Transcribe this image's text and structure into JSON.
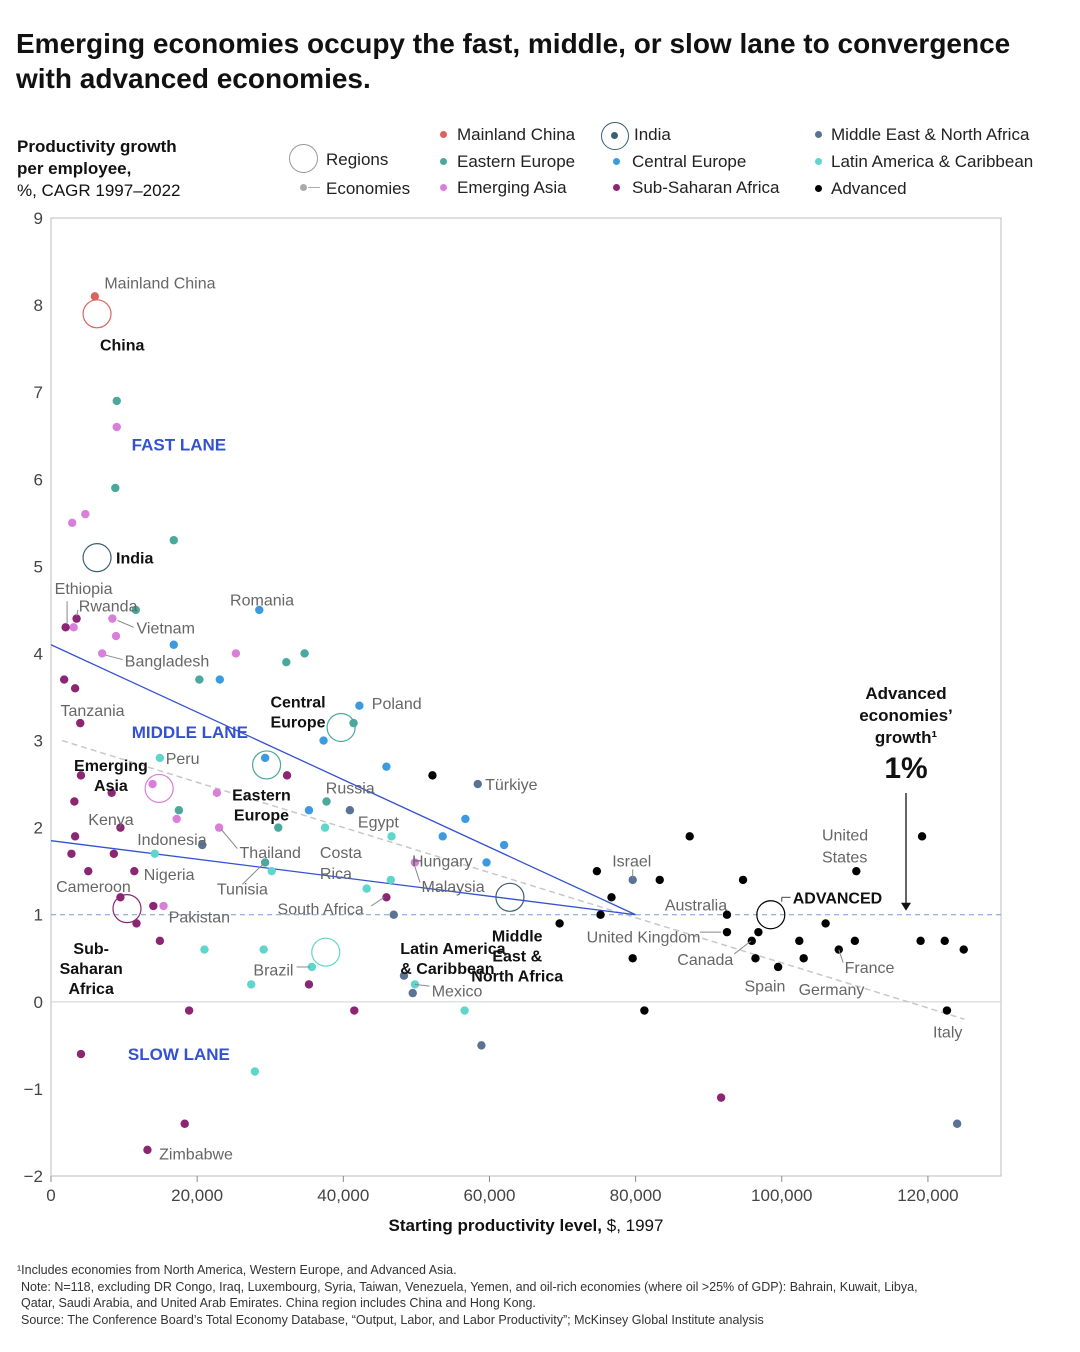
{
  "title": "Emerging economies occupy the fast, middle, or slow lane to convergence with advanced economies.",
  "y_axis_title": {
    "bold": "Productivity growth per employee,",
    "rest": "%, CAGR 1997–2022"
  },
  "legend": {
    "regions_label": "Regions",
    "economies_label": "Economies",
    "items": [
      {
        "name": "Mainland China",
        "color": "#d9645f"
      },
      {
        "name": "Eastern Europe",
        "color": "#4aa89c"
      },
      {
        "name": "Emerging Asia",
        "color": "#d97fd9"
      },
      {
        "name": "India",
        "color": "#3b5f73",
        "ringed": true
      },
      {
        "name": "Central Europe",
        "color": "#3c9be0"
      },
      {
        "name": "Sub-Saharan Africa",
        "color": "#8a2672"
      },
      {
        "name": "Middle East & North Africa",
        "color": "#5a7394"
      },
      {
        "name": "Latin America & Caribbean",
        "color": "#5fd6cc"
      },
      {
        "name": "Advanced",
        "color": "#000000"
      }
    ]
  },
  "notes": [
    "¹Includes economies from North America, Western Europe, and Advanced Asia.",
    "Note: N=118, excluding DR Congo, Iraq, Luxembourg, Syria, Taiwan, Venezuela, Yemen, and oil-rich economies (where oil >25% of GDP): Bahrain, Kuwait, Libya,",
    "Qatar, Saudi Arabia, and United Arab Emirates. China region includes China and Hong Kong.",
    "Source: The Conference Board’s Total Economy Database, “Output, Labor, and Labor Productivity”; McKinsey Global Institute analysis"
  ],
  "chart_data": {
    "type": "scatter",
    "xlabel_bold": "Starting productivity level,",
    "xlabel_rest": "$, 1997",
    "xlim": [
      0,
      130000
    ],
    "ylim": [
      -2,
      9
    ],
    "xticks": [
      {
        "v": 0,
        "l": "0"
      },
      {
        "v": 20000,
        "l": "20,000"
      },
      {
        "v": 40000,
        "l": "40,000"
      },
      {
        "v": 60000,
        "l": "60,000"
      },
      {
        "v": 80000,
        "l": "80,000"
      },
      {
        "v": 100000,
        "l": "100,000"
      },
      {
        "v": 120000,
        "l": "120,000"
      }
    ],
    "yticks": [
      {
        "v": -2,
        "l": "−2"
      },
      {
        "v": -1,
        "l": "−1"
      },
      {
        "v": 0,
        "l": "0"
      },
      {
        "v": 1,
        "l": "1"
      },
      {
        "v": 2,
        "l": "2"
      },
      {
        "v": 3,
        "l": "3"
      },
      {
        "v": 4,
        "l": "4"
      },
      {
        "v": 5,
        "l": "5"
      },
      {
        "v": 6,
        "l": "6"
      },
      {
        "v": 7,
        "l": "7"
      },
      {
        "v": 8,
        "l": "8"
      },
      {
        "v": 9,
        "l": "9"
      }
    ],
    "reference_line_y": 1,
    "lanes": [
      {
        "name": "FAST LANE",
        "x": 17500,
        "y": 6.4
      },
      {
        "name": "MIDDLE LANE",
        "x": 19000,
        "y": 3.1
      },
      {
        "name": "SLOW LANE",
        "x": 17500,
        "y": -0.6
      }
    ],
    "lane_lines": [
      {
        "x": [
          0,
          80000
        ],
        "y": [
          4.1,
          1.0
        ]
      },
      {
        "x": [
          0,
          80000
        ],
        "y": [
          1.85,
          1.0
        ]
      }
    ],
    "trend_line": {
      "x": [
        1500,
        125000
      ],
      "y": [
        3.0,
        -0.2
      ]
    },
    "advanced_annotation": {
      "label": "Advanced economies’ growth¹",
      "value": "1%",
      "x": 117000
    },
    "regions": [
      {
        "name": "China",
        "x": 6300,
        "y": 7.9,
        "color": "#d9645f"
      },
      {
        "name": "India",
        "x": 6300,
        "y": 5.1,
        "color": "#3b5f73"
      },
      {
        "name": "Central Europe",
        "x": 39700,
        "y": 3.15,
        "color": "#4aa89c"
      },
      {
        "name": "Eastern Europe",
        "x": 29500,
        "y": 2.72,
        "color": "#4aa89c"
      },
      {
        "name": "Emerging Asia",
        "x": 14800,
        "y": 2.45,
        "color": "#d97fd9"
      },
      {
        "name": "Middle East & North Africa",
        "x": 62800,
        "y": 1.2,
        "color": "#3b5f73"
      },
      {
        "name": "Latin America & Caribbean",
        "x": 37600,
        "y": 0.57,
        "color": "#5fd6cc"
      },
      {
        "name": "Sub-Saharan Africa",
        "x": 10400,
        "y": 1.07,
        "color": "#8a2672"
      },
      {
        "name": "ADVANCED",
        "x": 98500,
        "y": 1.0,
        "color": "#000000"
      }
    ],
    "region_labels": [
      {
        "text": "China",
        "x": 6700,
        "y": 7.55
      },
      {
        "text": "India",
        "x": 8900,
        "y": 5.1
      },
      {
        "text": "Central Europe",
        "x": 33800,
        "y": 3.45
      },
      {
        "text": "Eastern Europe",
        "x": 28800,
        "y": 2.38
      },
      {
        "text": "Emerging Asia",
        "x": 8200,
        "y": 2.72
      },
      {
        "text": "Middle East & North Africa",
        "x": 63800,
        "y": 0.76
      },
      {
        "text": "Latin America & Caribbean",
        "x": 47800,
        "y": 0.62
      },
      {
        "text": "Sub-Saharan Africa",
        "x": 5500,
        "y": 0.62
      },
      {
        "text": "ADVANCED",
        "x": 101500,
        "y": 1.2
      }
    ],
    "series": [
      {
        "name": "Mainland China",
        "color": "#d9645f",
        "points": [
          [
            6000,
            8.1
          ]
        ]
      },
      {
        "name": "Eastern Europe",
        "color": "#4aa89c",
        "points": [
          [
            9000,
            6.9
          ],
          [
            8800,
            5.9
          ],
          [
            16800,
            5.3
          ],
          [
            11600,
            4.5
          ],
          [
            34700,
            4.0
          ],
          [
            32200,
            3.9
          ],
          [
            20300,
            3.7
          ],
          [
            41400,
            3.2
          ],
          [
            17500,
            2.2
          ],
          [
            37700,
            2.3
          ],
          [
            31100,
            2.0
          ],
          [
            29300,
            1.6
          ]
        ]
      },
      {
        "name": "Emerging Asia",
        "color": "#d97fd9",
        "points": [
          [
            9000,
            6.6
          ],
          [
            4700,
            5.6
          ],
          [
            2900,
            5.5
          ],
          [
            3100,
            4.3
          ],
          [
            8400,
            4.4
          ],
          [
            8900,
            4.2
          ],
          [
            7000,
            4.0
          ],
          [
            25300,
            4.0
          ],
          [
            13900,
            2.5
          ],
          [
            22700,
            2.4
          ],
          [
            17200,
            2.1
          ],
          [
            23000,
            2.0
          ],
          [
            15400,
            1.1
          ],
          [
            49800,
            1.6
          ]
        ]
      },
      {
        "name": "Central Europe",
        "color": "#3c9be0",
        "points": [
          [
            28500,
            4.5
          ],
          [
            16800,
            4.1
          ],
          [
            23100,
            3.7
          ],
          [
            42200,
            3.4
          ],
          [
            29300,
            2.8
          ],
          [
            37300,
            3.0
          ],
          [
            45900,
            2.7
          ],
          [
            35300,
            2.2
          ],
          [
            56700,
            2.1
          ],
          [
            53600,
            1.9
          ],
          [
            62000,
            1.8
          ],
          [
            59600,
            1.6
          ]
        ]
      },
      {
        "name": "Sub-Saharan Africa",
        "color": "#8a2672",
        "points": [
          [
            2000,
            4.3
          ],
          [
            3500,
            4.4
          ],
          [
            1800,
            3.7
          ],
          [
            3300,
            3.6
          ],
          [
            4000,
            3.2
          ],
          [
            4100,
            2.6
          ],
          [
            3200,
            2.3
          ],
          [
            8300,
            2.4
          ],
          [
            32300,
            2.6
          ],
          [
            3300,
            1.9
          ],
          [
            9500,
            2.0
          ],
          [
            2800,
            1.7
          ],
          [
            8600,
            1.7
          ],
          [
            5100,
            1.5
          ],
          [
            11400,
            1.5
          ],
          [
            9500,
            1.2
          ],
          [
            14000,
            1.1
          ],
          [
            11700,
            0.9
          ],
          [
            14900,
            0.7
          ],
          [
            35300,
            0.2
          ],
          [
            18900,
            -0.1
          ],
          [
            41500,
            -0.1
          ],
          [
            4100,
            -0.6
          ],
          [
            91700,
            -1.1
          ],
          [
            18300,
            -1.4
          ],
          [
            13200,
            -1.7
          ],
          [
            45900,
            1.2
          ]
        ]
      },
      {
        "name": "Middle East & North Africa",
        "color": "#5a7394",
        "points": [
          [
            58400,
            2.5
          ],
          [
            40900,
            2.2
          ],
          [
            20700,
            1.8
          ],
          [
            46900,
            1.0
          ],
          [
            48300,
            0.3
          ],
          [
            49500,
            0.1
          ],
          [
            58900,
            -0.5
          ],
          [
            124000,
            -1.4
          ],
          [
            79600,
            1.4
          ]
        ]
      },
      {
        "name": "Latin America & Caribbean",
        "color": "#5fd6cc",
        "points": [
          [
            14900,
            2.8
          ],
          [
            14200,
            1.7
          ],
          [
            30200,
            1.5
          ],
          [
            43200,
            1.3
          ],
          [
            46500,
            1.4
          ],
          [
            46600,
            1.9
          ],
          [
            37500,
            2.0
          ],
          [
            21000,
            0.6
          ],
          [
            29100,
            0.6
          ],
          [
            35700,
            0.4
          ],
          [
            27400,
            0.2
          ],
          [
            49800,
            0.2
          ],
          [
            56600,
            -0.1
          ],
          [
            27900,
            -0.8
          ]
        ]
      },
      {
        "name": "Advanced",
        "color": "#000000",
        "points": [
          [
            52200,
            2.6
          ],
          [
            87400,
            1.9
          ],
          [
            119200,
            1.9
          ],
          [
            74700,
            1.5
          ],
          [
            83300,
            1.4
          ],
          [
            94700,
            1.4
          ],
          [
            110200,
            1.5
          ],
          [
            76700,
            1.2
          ],
          [
            75200,
            1.0
          ],
          [
            92500,
            1.0
          ],
          [
            69600,
            0.9
          ],
          [
            92500,
            0.8
          ],
          [
            96800,
            0.8
          ],
          [
            95900,
            0.7
          ],
          [
            102400,
            0.7
          ],
          [
            106000,
            0.9
          ],
          [
            110000,
            0.7
          ],
          [
            119000,
            0.7
          ],
          [
            122300,
            0.7
          ],
          [
            124900,
            0.6
          ],
          [
            107800,
            0.6
          ],
          [
            79600,
            0.5
          ],
          [
            96400,
            0.5
          ],
          [
            103000,
            0.5
          ],
          [
            99500,
            0.4
          ],
          [
            81200,
            -0.1
          ],
          [
            122600,
            -0.1
          ]
        ]
      }
    ],
    "annotations": [
      {
        "text": "Mainland China",
        "x": 7300,
        "y": 8.26,
        "anchor": "start",
        "lines": []
      },
      {
        "text": "Ethiopia",
        "x": 500,
        "y": 4.75,
        "anchor": "start",
        "lines": [
          [
            2200,
            4.6,
            2200,
            4.35
          ]
        ]
      },
      {
        "text": "Rwanda",
        "x": 3800,
        "y": 4.55,
        "anchor": "start",
        "lines": [
          [
            3700,
            4.5,
            3500,
            4.43
          ]
        ]
      },
      {
        "text": "Vietnam",
        "x": 11700,
        "y": 4.3,
        "anchor": "start",
        "lines": [
          [
            9100,
            4.38,
            11300,
            4.3
          ]
        ]
      },
      {
        "text": "Bangladesh",
        "x": 10100,
        "y": 3.92,
        "anchor": "start",
        "lines": [
          [
            7500,
            3.98,
            9800,
            3.93
          ]
        ]
      },
      {
        "text": "Romania",
        "x": 24500,
        "y": 4.62,
        "anchor": "start",
        "lines": []
      },
      {
        "text": "Poland",
        "x": 43900,
        "y": 3.43,
        "anchor": "start",
        "lines": []
      },
      {
        "text": "Tanzania",
        "x": 1300,
        "y": 3.35,
        "anchor": "start",
        "lines": []
      },
      {
        "text": "Peru",
        "x": 15700,
        "y": 2.8,
        "anchor": "start",
        "lines": []
      },
      {
        "text": "Russia",
        "x": 37600,
        "y": 2.46,
        "anchor": "start",
        "lines": []
      },
      {
        "text": "Türkiye",
        "x": 59400,
        "y": 2.5,
        "anchor": "start",
        "lines": []
      },
      {
        "text": "Kenya",
        "x": 5100,
        "y": 2.1,
        "anchor": "start",
        "lines": []
      },
      {
        "text": "Egypt",
        "x": 42000,
        "y": 2.07,
        "anchor": "start",
        "lines": []
      },
      {
        "text": "Indonesia",
        "x": 11800,
        "y": 1.87,
        "anchor": "start",
        "lines": []
      },
      {
        "text": "Thailand",
        "x": 25800,
        "y": 1.72,
        "anchor": "start",
        "lines": [
          [
            23300,
            1.98,
            25500,
            1.76
          ]
        ]
      },
      {
        "text": "Costa",
        "x": 36800,
        "y": 1.72,
        "anchor": "start",
        "lines": []
      },
      {
        "text": "Rica",
        "x": 36800,
        "y": 1.48,
        "anchor": "start",
        "lines": []
      },
      {
        "text": "Hungary",
        "x": 49400,
        "y": 1.62,
        "anchor": "start",
        "lines": []
      },
      {
        "text": "Malaysia",
        "x": 50700,
        "y": 1.33,
        "anchor": "start",
        "lines": [
          [
            49800,
            1.55,
            50500,
            1.37
          ]
        ]
      },
      {
        "text": "Nigeria",
        "x": 12700,
        "y": 1.47,
        "anchor": "start",
        "lines": []
      },
      {
        "text": "Cameroon",
        "x": 700,
        "y": 1.33,
        "anchor": "start",
        "lines": []
      },
      {
        "text": "Tunisia",
        "x": 22700,
        "y": 1.3,
        "anchor": "start",
        "lines": [
          [
            26200,
            1.35,
            29000,
            1.58
          ]
        ]
      },
      {
        "text": "South Africa",
        "x": 31000,
        "y": 1.07,
        "anchor": "start",
        "lines": [
          [
            43800,
            1.1,
            45600,
            1.2
          ]
        ]
      },
      {
        "text": "Pakistan",
        "x": 16100,
        "y": 0.98,
        "anchor": "start",
        "lines": []
      },
      {
        "text": "Israel",
        "x": 76800,
        "y": 1.62,
        "anchor": "start",
        "lines": [
          [
            79600,
            1.52,
            79600,
            1.42
          ]
        ]
      },
      {
        "text": "Australia",
        "x": 84000,
        "y": 1.12,
        "anchor": "start",
        "lines": []
      },
      {
        "text": "United Kingdom",
        "x": 73300,
        "y": 0.75,
        "anchor": "start",
        "lines": [
          [
            88800,
            0.8,
            91700,
            0.8
          ]
        ]
      },
      {
        "text": "Canada",
        "x": 85700,
        "y": 0.49,
        "anchor": "start",
        "lines": [
          [
            93500,
            0.55,
            95800,
            0.7
          ]
        ]
      },
      {
        "text": "Spain",
        "x": 94900,
        "y": 0.19,
        "anchor": "start",
        "lines": []
      },
      {
        "text": "Germany",
        "x": 102300,
        "y": 0.15,
        "anchor": "start",
        "lines": []
      },
      {
        "text": "France",
        "x": 108600,
        "y": 0.4,
        "anchor": "start",
        "lines": [
          [
            107800,
            0.6,
            108400,
            0.45
          ]
        ]
      },
      {
        "text": "United",
        "x": 105500,
        "y": 1.92,
        "anchor": "start",
        "lines": []
      },
      {
        "text": "States",
        "x": 105500,
        "y": 1.67,
        "anchor": "start",
        "lines": []
      },
      {
        "text": "Italy",
        "x": 120700,
        "y": -0.34,
        "anchor": "start",
        "lines": []
      },
      {
        "text": "Brazil",
        "x": 27700,
        "y": 0.37,
        "anchor": "start",
        "lines": [
          [
            33600,
            0.4,
            35500,
            0.4
          ]
        ]
      },
      {
        "text": "Mexico",
        "x": 52100,
        "y": 0.13,
        "anchor": "start",
        "lines": [
          [
            49800,
            0.2,
            51800,
            0.18
          ]
        ]
      },
      {
        "text": "Zimbabwe",
        "x": 14800,
        "y": -1.74,
        "anchor": "start",
        "lines": []
      }
    ]
  }
}
